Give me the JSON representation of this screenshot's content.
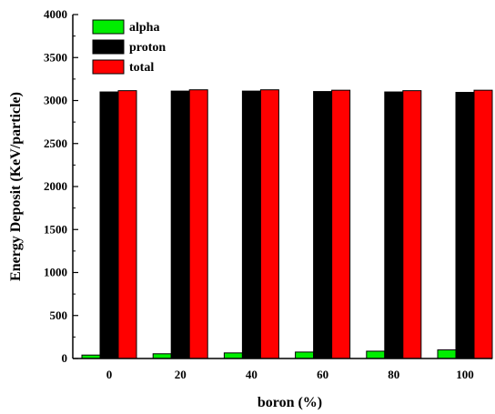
{
  "chart_data": {
    "type": "bar",
    "xlabel": "boron (%)",
    "ylabel": "Energy Deposit (KeV/particle)",
    "categories": [
      "0",
      "20",
      "40",
      "60",
      "80",
      "100"
    ],
    "ylim": [
      0,
      4000
    ],
    "yticks": [
      0,
      500,
      1000,
      1500,
      2000,
      2500,
      3000,
      3500,
      4000
    ],
    "grid": false,
    "legend_position": "top-left",
    "series": [
      {
        "name": "alpha",
        "color": "#00ee00",
        "values": [
          40,
          55,
          65,
          75,
          85,
          100
        ]
      },
      {
        "name": "proton",
        "color": "#000000",
        "values": [
          3100,
          3110,
          3110,
          3105,
          3100,
          3095
        ]
      },
      {
        "name": "total",
        "color": "#ff0000",
        "values": [
          3115,
          3125,
          3125,
          3120,
          3115,
          3120
        ]
      }
    ]
  }
}
